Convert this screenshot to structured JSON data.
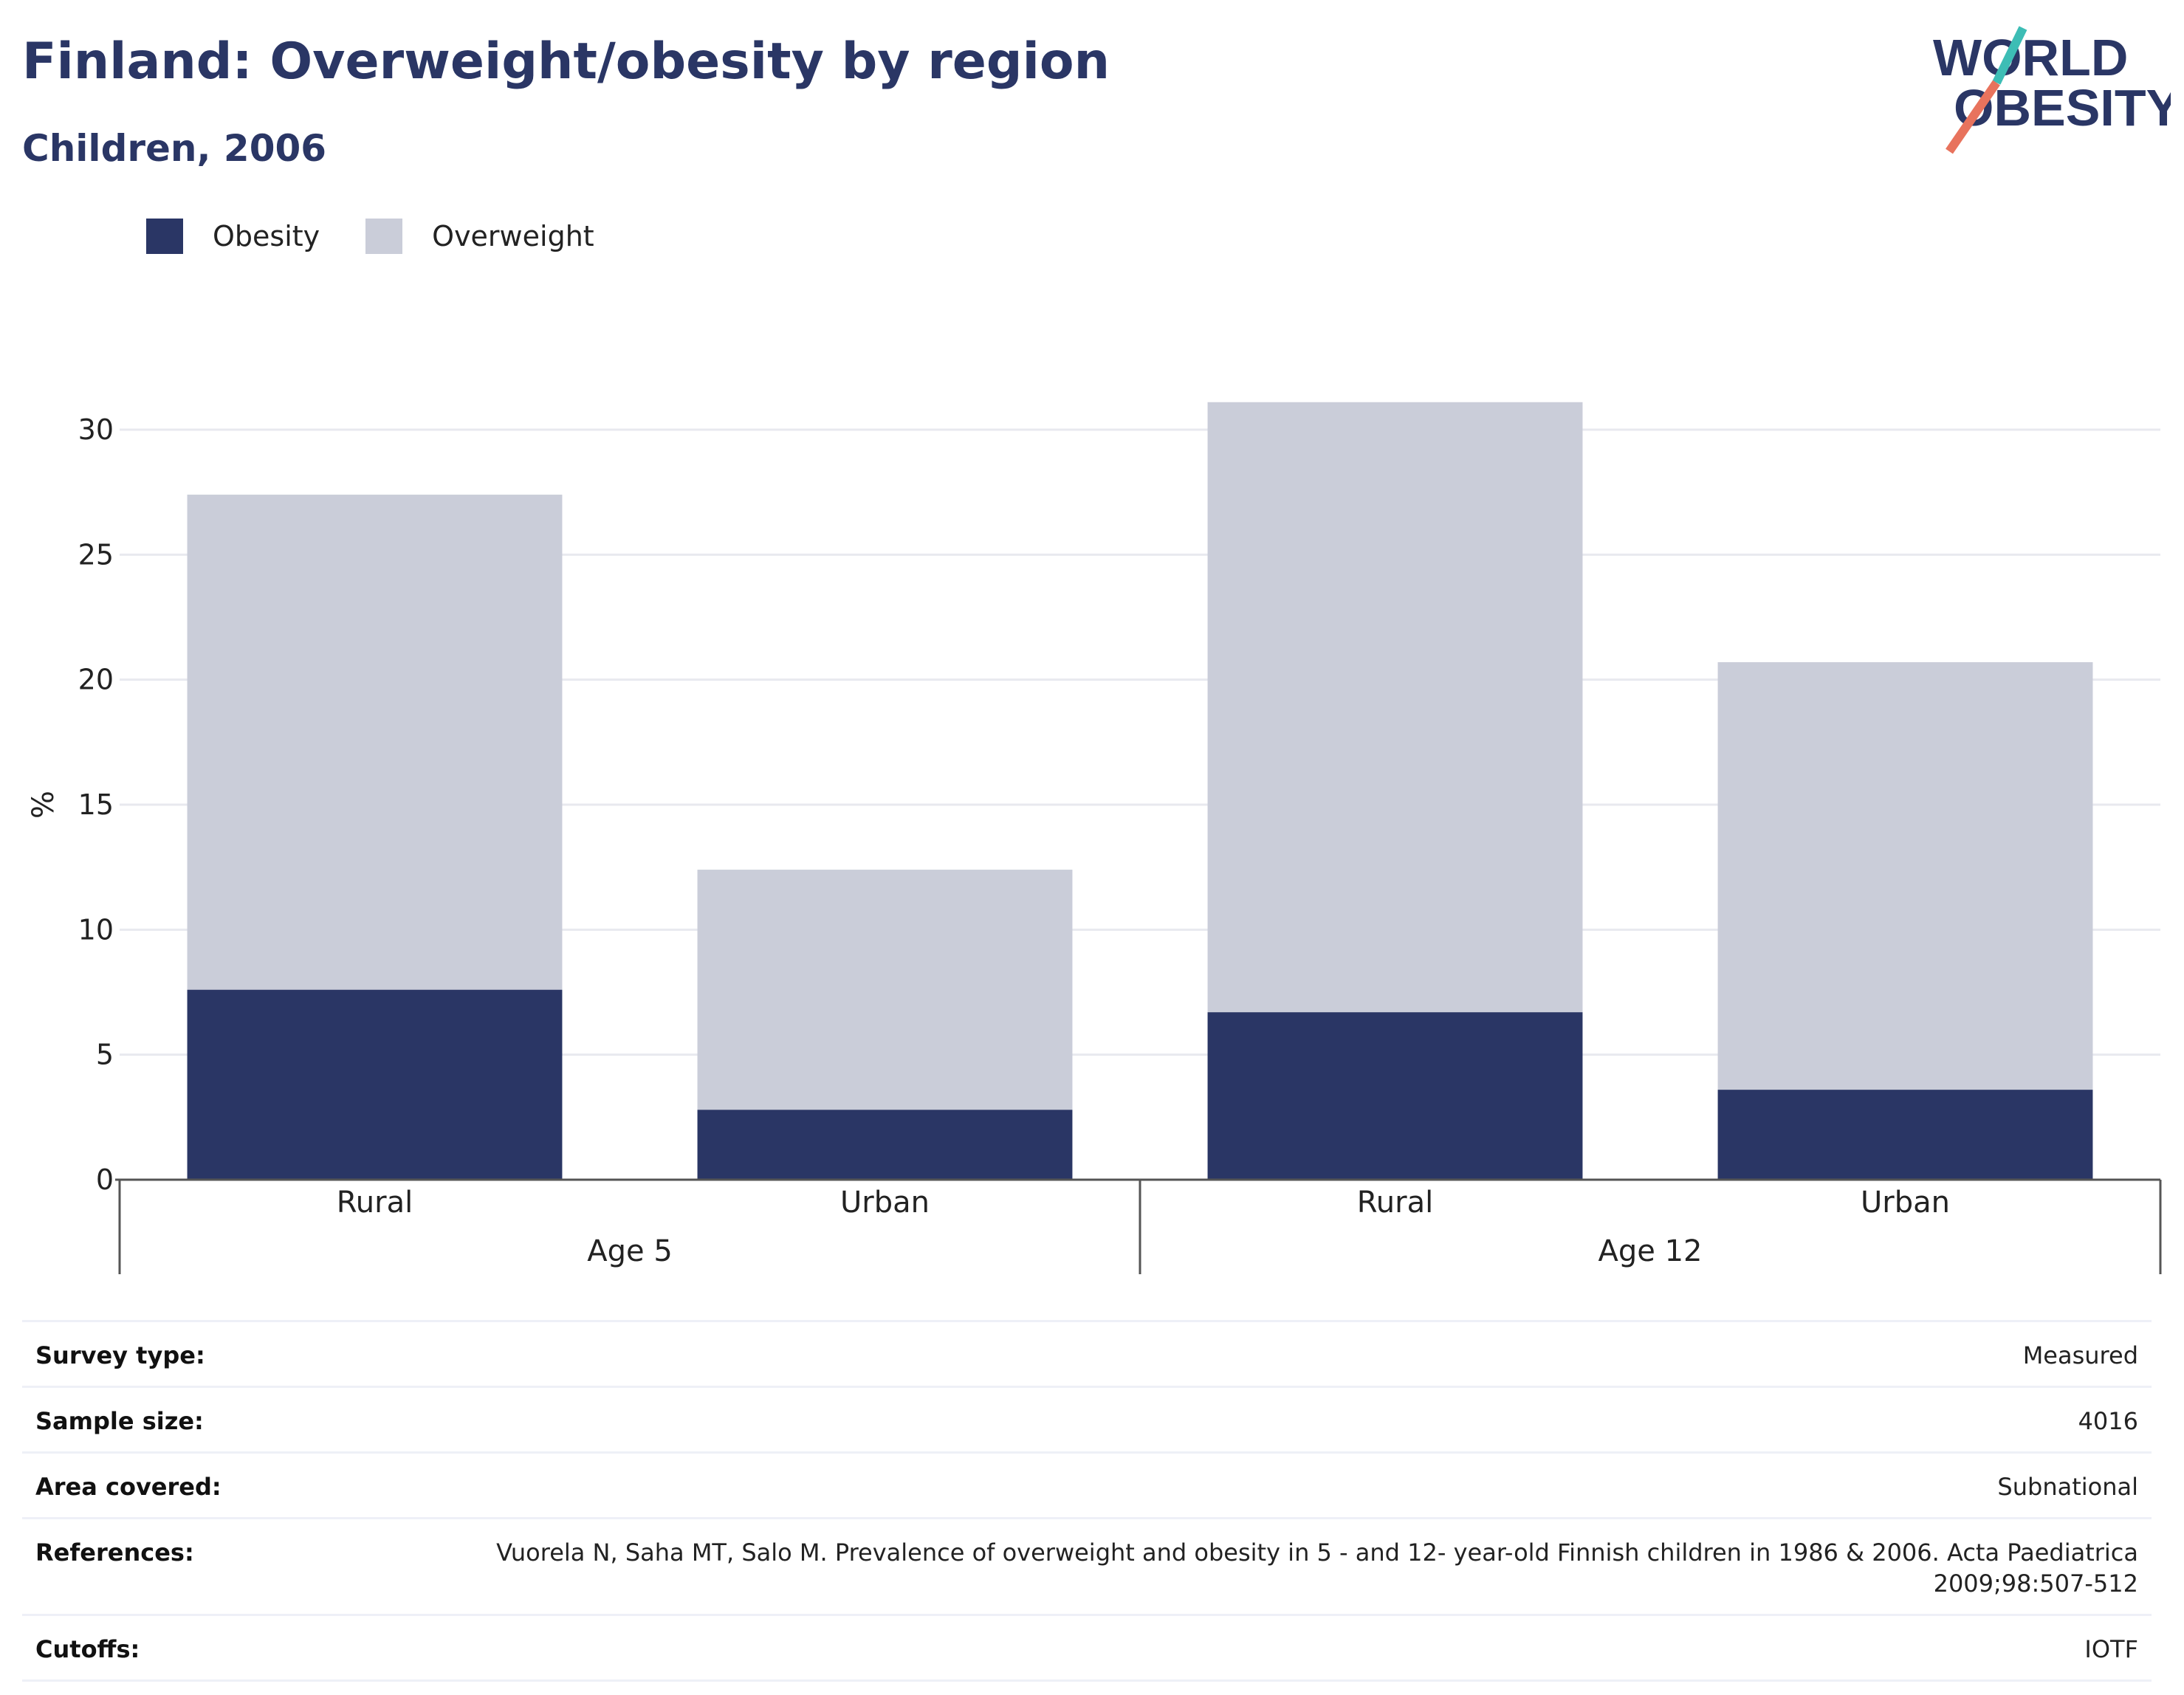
{
  "header": {
    "title": "Finland: Overweight/obesity by region",
    "subtitle": "Children, 2006"
  },
  "logo": {
    "line1": "WORLD",
    "line2": "OBESITY",
    "accent_colors": [
      "#3dbdb5",
      "#e8735d"
    ]
  },
  "colors": {
    "obesity": "#2a3665",
    "overweight": "#cacdd9",
    "text": "#2a3665"
  },
  "legend": {
    "items": [
      {
        "label": "Obesity"
      },
      {
        "label": "Overweight"
      }
    ]
  },
  "chart_data": {
    "type": "bar",
    "stacked": true,
    "ylabel": "%",
    "ylim": [
      0,
      30
    ],
    "yticks": [
      0,
      5,
      10,
      15,
      20,
      25,
      30
    ],
    "categories": [
      "Rural",
      "Urban",
      "Rural",
      "Urban"
    ],
    "groups": [
      {
        "label": "Age 5",
        "categories": [
          0,
          1
        ]
      },
      {
        "label": "Age 12",
        "categories": [
          2,
          3
        ]
      }
    ],
    "series": [
      {
        "name": "Obesity",
        "values": [
          7.6,
          2.8,
          6.7,
          3.6
        ]
      },
      {
        "name": "Overweight",
        "values": [
          19.8,
          9.6,
          24.4,
          17.1
        ]
      }
    ],
    "grid": true,
    "legend_position": "top-left"
  },
  "info": [
    {
      "label": "Survey type:",
      "value": "Measured"
    },
    {
      "label": "Sample size:",
      "value": "4016"
    },
    {
      "label": "Area covered:",
      "value": "Subnational"
    },
    {
      "label": "References:",
      "value": "Vuorela N, Saha MT, Salo M. Prevalence of overweight and obesity in 5 - and 12- year-old Finnish children in 1986 & 2006. Acta Paediatrica 2009;98:507-512"
    },
    {
      "label": "Cutoffs:",
      "value": "IOTF"
    }
  ]
}
